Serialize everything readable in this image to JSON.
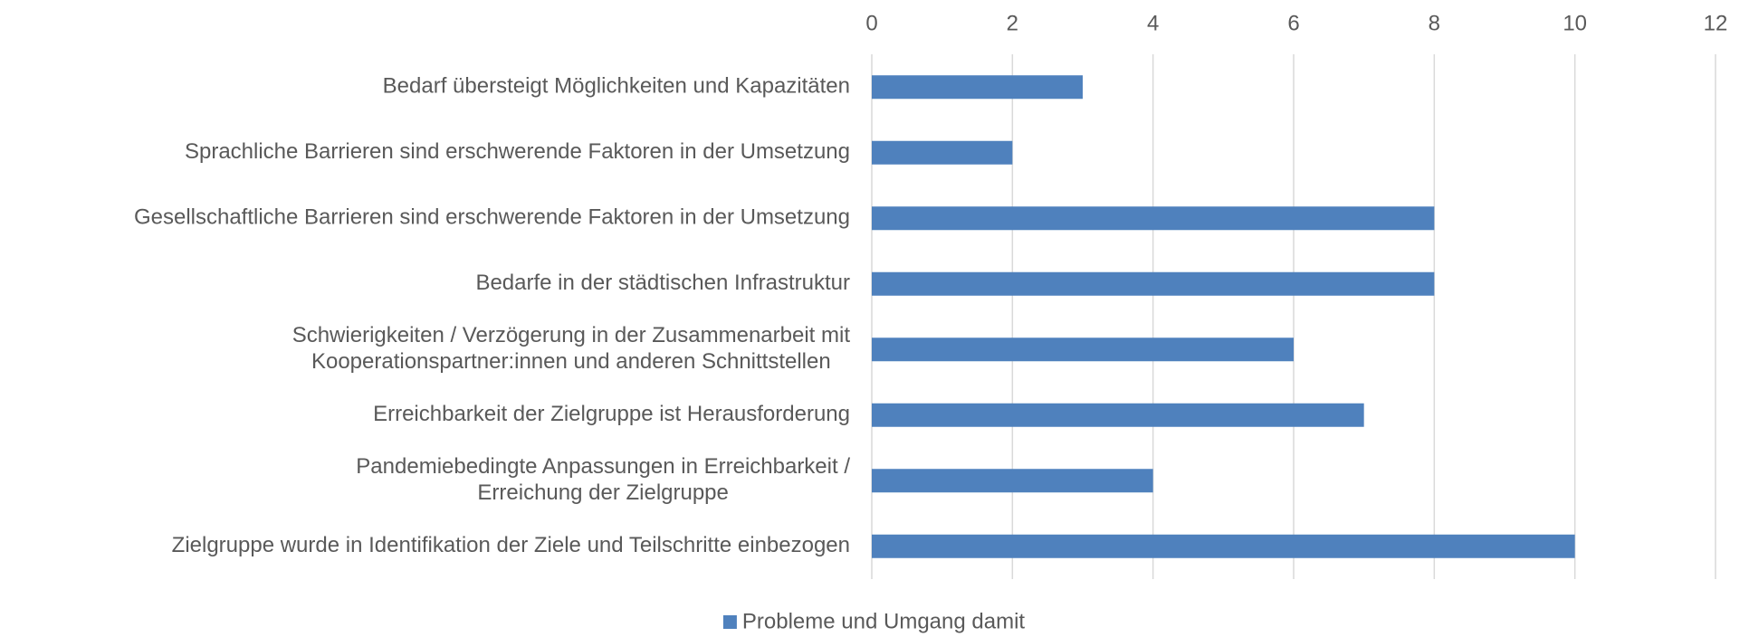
{
  "chart_data": {
    "type": "hbar",
    "categories": [
      "Bedarf übersteigt Möglichkeiten und Kapazitäten",
      "Sprachliche Barrieren sind erschwerende Faktoren in der Umsetzung",
      "Gesellschaftliche Barrieren sind erschwerende Faktoren in der Umsetzung",
      "Bedarfe in der städtischen Infrastruktur",
      "Schwierigkeiten / Verzögerung in der Zusammenarbeit mit\nKooperationspartner:innen und anderen Schnittstellen",
      "Erreichbarkeit der Zielgruppe ist Herausforderung",
      "Pandemiebedingte Anpassungen in Erreichbarkeit /\nErreichung der Zielgruppe",
      "Zielgruppe wurde in Identifikation der Ziele und Teilschritte einbezogen"
    ],
    "series": [
      {
        "name": "Probleme und Umgang damit",
        "color": "#4f81bd",
        "values": [
          3,
          2,
          8,
          8,
          6,
          7,
          4,
          10
        ]
      }
    ],
    "xlim": [
      0,
      12
    ],
    "xticks": [
      0,
      2,
      4,
      6,
      8,
      10,
      12
    ],
    "grid": true,
    "legend": "bottom"
  }
}
